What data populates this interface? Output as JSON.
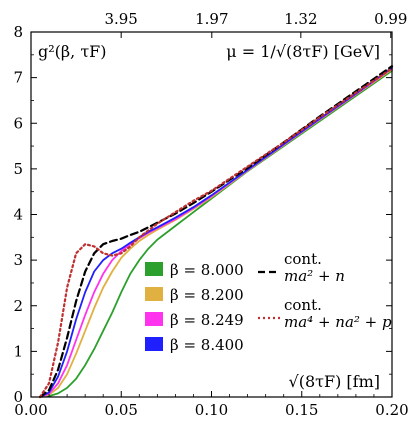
{
  "chart_data": {
    "type": "line",
    "title": "",
    "xlabel": "√(8τF) [fm]",
    "ylabel": "",
    "top_axis_label": "μ = 1/√(8τF) [GeV]",
    "corner_label": "g²(β, τF)",
    "xlim": [
      0.0,
      0.2
    ],
    "ylim": [
      0,
      8
    ],
    "x_ticks": [
      "0.00",
      "0.05",
      "0.10",
      "0.15",
      "0.20"
    ],
    "y_ticks": [
      "0",
      "1",
      "2",
      "3",
      "4",
      "5",
      "6",
      "7",
      "8"
    ],
    "top_ticks": [
      "3.95",
      "1.97",
      "1.32",
      "0.99"
    ],
    "legend_placement": "center-right",
    "grid": false,
    "series": [
      {
        "name": "β = 8.000",
        "color": "#2ca02c",
        "style": "solid",
        "x": [
          0.005,
          0.01,
          0.015,
          0.02,
          0.025,
          0.03,
          0.035,
          0.04,
          0.045,
          0.05,
          0.055,
          0.06,
          0.065,
          0.07,
          0.08,
          0.09,
          0.1,
          0.12,
          0.14,
          0.16,
          0.18,
          0.2
        ],
        "y": [
          0.0,
          0.02,
          0.08,
          0.2,
          0.4,
          0.7,
          1.05,
          1.45,
          1.85,
          2.3,
          2.7,
          3.0,
          3.25,
          3.45,
          3.75,
          4.05,
          4.35,
          4.95,
          5.5,
          6.05,
          6.6,
          7.15
        ]
      },
      {
        "name": "β = 8.200",
        "color": "#e0b040",
        "style": "solid",
        "x": [
          0.005,
          0.01,
          0.015,
          0.02,
          0.025,
          0.03,
          0.035,
          0.04,
          0.045,
          0.05,
          0.055,
          0.06,
          0.065,
          0.07,
          0.08,
          0.09,
          0.1,
          0.12,
          0.14,
          0.16,
          0.18,
          0.2
        ],
        "y": [
          0.0,
          0.05,
          0.2,
          0.5,
          0.95,
          1.45,
          1.95,
          2.4,
          2.75,
          3.05,
          3.25,
          3.42,
          3.55,
          3.67,
          3.88,
          4.12,
          4.38,
          4.96,
          5.52,
          6.08,
          6.63,
          7.18
        ]
      },
      {
        "name": "β = 8.249",
        "color": "#ff33ee",
        "style": "solid",
        "x": [
          0.005,
          0.01,
          0.015,
          0.02,
          0.025,
          0.03,
          0.035,
          0.04,
          0.045,
          0.05,
          0.055,
          0.06,
          0.065,
          0.07,
          0.08,
          0.09,
          0.1,
          0.12,
          0.14,
          0.16,
          0.18,
          0.2
        ],
        "y": [
          0.0,
          0.07,
          0.3,
          0.7,
          1.25,
          1.8,
          2.3,
          2.7,
          3.0,
          3.2,
          3.35,
          3.48,
          3.6,
          3.7,
          3.9,
          4.14,
          4.4,
          4.97,
          5.53,
          6.09,
          6.64,
          7.2
        ]
      },
      {
        "name": "β = 8.400",
        "color": "#2020ff",
        "style": "solid",
        "x": [
          0.005,
          0.01,
          0.015,
          0.02,
          0.025,
          0.03,
          0.035,
          0.04,
          0.045,
          0.05,
          0.055,
          0.06,
          0.065,
          0.07,
          0.08,
          0.09,
          0.1,
          0.12,
          0.14,
          0.16,
          0.18,
          0.2
        ],
        "y": [
          0.0,
          0.1,
          0.45,
          1.0,
          1.7,
          2.3,
          2.75,
          3.0,
          3.15,
          3.25,
          3.38,
          3.5,
          3.62,
          3.72,
          3.93,
          4.16,
          4.42,
          4.98,
          5.54,
          6.1,
          6.65,
          7.22
        ]
      },
      {
        "name": "cont. ma² + n",
        "color": "#000000",
        "style": "dashed",
        "x": [
          0.005,
          0.01,
          0.015,
          0.02,
          0.025,
          0.03,
          0.035,
          0.04,
          0.045,
          0.05,
          0.055,
          0.06,
          0.065,
          0.07,
          0.08,
          0.09,
          0.1,
          0.12,
          0.14,
          0.16,
          0.18,
          0.2
        ],
        "y": [
          0.0,
          0.15,
          0.6,
          1.3,
          2.1,
          2.75,
          3.15,
          3.35,
          3.42,
          3.47,
          3.55,
          3.62,
          3.72,
          3.82,
          4.02,
          4.25,
          4.5,
          5.02,
          5.58,
          6.15,
          6.7,
          7.25
        ]
      },
      {
        "name": "cont. ma⁴ + na² + p",
        "color": "#c03030",
        "style": "dotted",
        "x": [
          0.005,
          0.01,
          0.015,
          0.02,
          0.025,
          0.03,
          0.035,
          0.04,
          0.045,
          0.05,
          0.055,
          0.06,
          0.065,
          0.07,
          0.08,
          0.09,
          0.1,
          0.12,
          0.14,
          0.16,
          0.18,
          0.2
        ],
        "y": [
          0.0,
          0.3,
          1.2,
          2.4,
          3.15,
          3.35,
          3.3,
          3.15,
          3.1,
          3.15,
          3.3,
          3.5,
          3.65,
          3.8,
          4.05,
          4.3,
          4.52,
          5.05,
          5.58,
          6.13,
          6.67,
          7.2
        ]
      }
    ],
    "legend_left": [
      {
        "label": "β = 8.000",
        "color": "#2ca02c"
      },
      {
        "label": "β = 8.200",
        "color": "#e0b040"
      },
      {
        "label": "β = 8.249",
        "color": "#ff33ee"
      },
      {
        "label": "β = 8.400",
        "color": "#2020ff"
      }
    ],
    "legend_right": [
      {
        "line1": "cont.",
        "line2": "ma² + n",
        "color": "#000000",
        "style": "dashed"
      },
      {
        "line1": "cont.",
        "line2": "ma⁴ + na² + p",
        "color": "#c03030",
        "style": "dotted"
      }
    ]
  }
}
